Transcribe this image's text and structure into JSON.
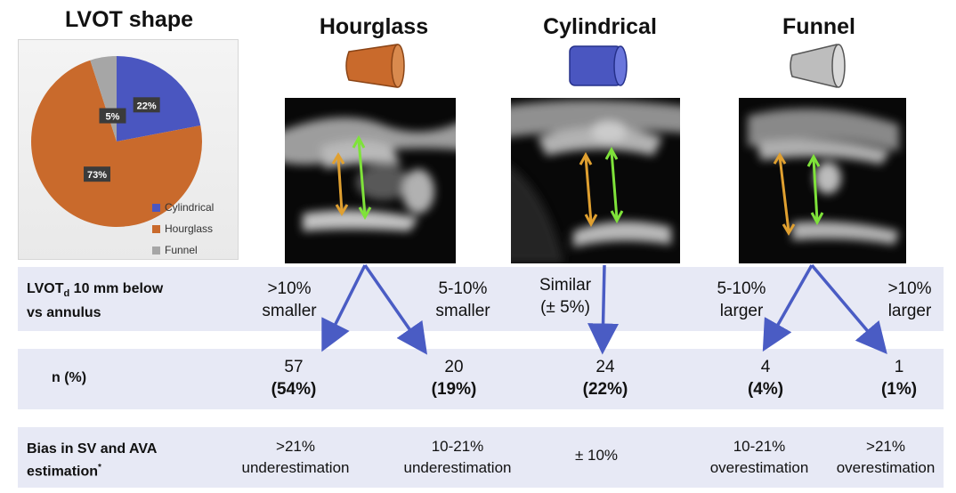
{
  "pie": {
    "title": "LVOT shape",
    "chart_data": {
      "type": "pie",
      "slices": [
        {
          "label": "Cylindrical",
          "value": 22,
          "display": "22%",
          "color": "#4a56c0"
        },
        {
          "label": "Hourglass",
          "value": 73,
          "display": "73%",
          "color": "#c96a2c"
        },
        {
          "label": "Funnel",
          "value": 5,
          "display": "5%",
          "color": "#a6a6a6"
        }
      ],
      "legend_position": "bottom-right"
    }
  },
  "shapes": [
    {
      "title": "Hourglass",
      "color": "#c96a2c",
      "icon": "hourglass-cone-icon"
    },
    {
      "title": "Cylindrical",
      "color": "#4a56c0",
      "icon": "cylinder-icon"
    },
    {
      "title": "Funnel",
      "color": "#b8b8b8",
      "icon": "funnel-cone-icon"
    }
  ],
  "arrow_colors": {
    "orange": "#e0a030",
    "green": "#7fe23a",
    "blue": "#4a5cc4"
  },
  "rows": {
    "lvot": {
      "label_line1": "LVOT",
      "label_sub": "d",
      "label_line1_rest": " 10 mm below",
      "label_line2": "vs annulus",
      "cells": [
        {
          "line1": ">10%",
          "line2": "smaller"
        },
        {
          "line1": "5-10%",
          "line2": "smaller"
        },
        {
          "line1": "Similar",
          "line2": "(± 5%)"
        },
        {
          "line1": "5-10%",
          "line2": "larger"
        },
        {
          "line1": ">10%",
          "line2": "larger"
        }
      ]
    },
    "n": {
      "label": "n (%)",
      "cells": [
        {
          "count": "57",
          "pct": "(54%)"
        },
        {
          "count": "20",
          "pct": "(19%)"
        },
        {
          "count": "24",
          "pct": "(22%)"
        },
        {
          "count": "4",
          "pct": "(4%)"
        },
        {
          "count": "1",
          "pct": "(1%)"
        }
      ]
    },
    "bias": {
      "label_line1": "Bias in SV and AVA",
      "label_line2": "estimation",
      "label_sup": "*",
      "cells": [
        {
          "line1": ">21%",
          "line2": "underestimation"
        },
        {
          "line1": "10-21%",
          "line2": "underestimation"
        },
        {
          "line1": "± 10%",
          "line2": ""
        },
        {
          "line1": "10-21%",
          "line2": "overestimation"
        },
        {
          "line1": ">21%",
          "line2": "overestimation"
        }
      ]
    }
  }
}
